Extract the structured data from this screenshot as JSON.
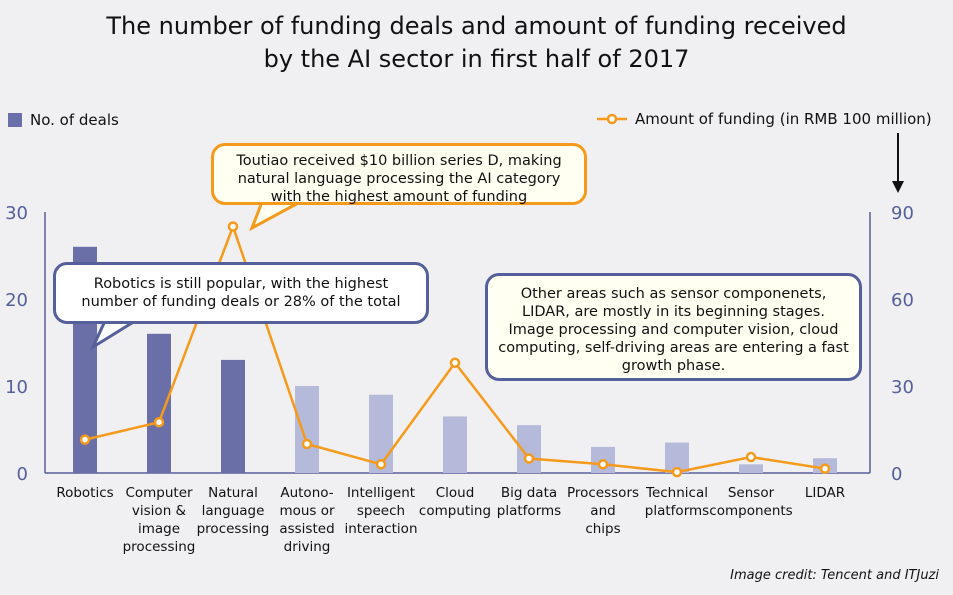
{
  "title_lines": [
    "The number of funding deals and amount of funding received",
    "by the AI sector in first half of 2017"
  ],
  "credit": "Image credit: Tencent and ITJuzi",
  "colors": {
    "bar_dark": "#6a6fa8",
    "bar_light": "#b5b9da",
    "line": "#f59a1b",
    "axis": "#555f9a"
  },
  "annotations": {
    "toutiao": "Toutiao received $10 billion series D, making natural language processing the AI category with the highest amount of funding",
    "robotics": "Robotics is still popular, with the highest number of funding deals or 28% of the total",
    "others": "Other areas such as sensor componenets, LIDAR, are mostly in its beginning stages. Image processing and computer vision, cloud computing, self-driving areas are entering a fast growth phase."
  },
  "chart_data": {
    "type": "bar+line",
    "title": "The number of funding deals and amount of funding received by the AI sector in first half of 2017",
    "categories": [
      "Robotics",
      "Computer vision & image processing",
      "Natural language processing",
      "Autono-mous or assisted driving",
      "Intelligent speech interaction",
      "Cloud computing",
      "Big data platforms",
      "Processors and chips",
      "Technical platforms",
      "Sensor components",
      "LIDAR"
    ],
    "category_lines": [
      [
        "Robotics"
      ],
      [
        "Computer",
        "vision &",
        "image",
        "processing"
      ],
      [
        "Natural",
        "language",
        "processing"
      ],
      [
        "Autono-",
        "mous or",
        "assisted",
        "driving"
      ],
      [
        "Intelligent",
        "speech",
        "interaction"
      ],
      [
        "Cloud",
        "computing"
      ],
      [
        "Big data",
        "platforms"
      ],
      [
        "Processors",
        "and",
        "chips"
      ],
      [
        "Technical",
        "platforms"
      ],
      [
        "Sensor",
        "components"
      ],
      [
        "LIDAR"
      ]
    ],
    "series": [
      {
        "name": "No. of deals",
        "type": "bar",
        "axis": "left",
        "values": [
          26,
          16,
          13,
          10,
          9,
          6.5,
          5.5,
          3,
          3.5,
          1,
          1.7
        ],
        "highlight": [
          true,
          true,
          true,
          false,
          false,
          false,
          false,
          false,
          false,
          false,
          false
        ]
      },
      {
        "name": "Amount of funding (in RMB 100 million)",
        "type": "line",
        "axis": "right",
        "values": [
          11.5,
          17.5,
          85,
          10,
          3,
          38,
          5,
          3,
          0.3,
          5.5,
          1.5
        ]
      }
    ],
    "left_axis": {
      "ylim": [
        0,
        30
      ],
      "ticks": [
        "0",
        "10",
        "20",
        "30"
      ]
    },
    "right_axis": {
      "ylim": [
        0,
        90
      ],
      "ticks": [
        "0",
        "30",
        "60",
        "90"
      ]
    },
    "legend": [
      "No. of deals",
      "Amount of funding (in RMB 100 million)"
    ]
  }
}
